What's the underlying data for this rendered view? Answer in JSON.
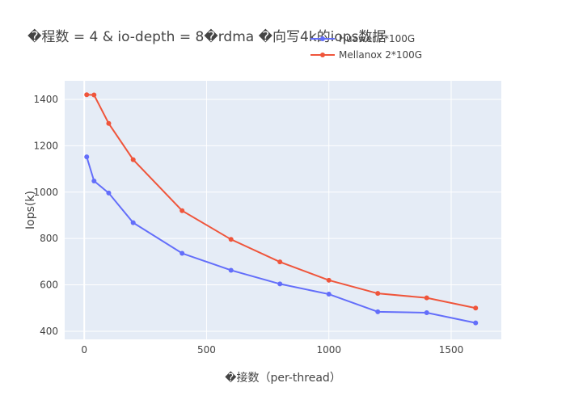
{
  "chart_data": {
    "type": "line",
    "title": "�程数 = 4 & io-depth = 8�rdma �向写4k的iops数据",
    "xlabel": "�接数（per-thread）",
    "ylabel": "Iops(k)",
    "xlim": [
      -80,
      1705
    ],
    "ylim": [
      365,
      1480
    ],
    "x_ticks": [
      0,
      500,
      1000,
      1500
    ],
    "y_ticks": [
      400,
      600,
      800,
      1000,
      1200,
      1400
    ],
    "x_tick_labels": [
      "0",
      "500",
      "1000",
      "1500"
    ],
    "y_tick_labels": [
      "400",
      "600",
      "800",
      "1000",
      "1200",
      "1400"
    ],
    "grid": true,
    "legend_position": "top-right",
    "x": [
      10,
      40,
      100,
      200,
      400,
      600,
      800,
      1000,
      1200,
      1400,
      1600
    ],
    "series": [
      {
        "name": "Huawei 2*100G",
        "color": "#636efa",
        "values": [
          1152,
          1048,
          996,
          868,
          736,
          663,
          604,
          560,
          484,
          480,
          436
        ]
      },
      {
        "name": "Mellanox 2*100G",
        "color": "#ef553b",
        "values": [
          1420,
          1419,
          1296,
          1140,
          920,
          796,
          699,
          620,
          563,
          544,
          500
        ]
      }
    ],
    "colors": {
      "plot_bg": "#e5ecf6",
      "grid": "#ffffff",
      "text": "#444444"
    }
  }
}
